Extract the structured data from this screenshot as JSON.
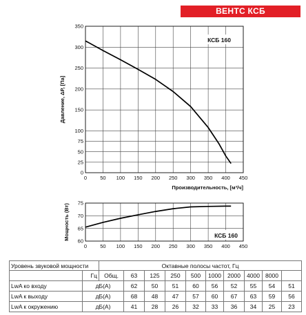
{
  "brand": "ВЕНТС КСБ",
  "chart_data": [
    {
      "type": "line",
      "model_label": "КСБ 160",
      "xlabel": "Производительность, [м³/ч]",
      "ylabel": "Давление, ΔP, [Па]",
      "xlim": [
        0,
        450
      ],
      "ylim": [
        0,
        350
      ],
      "x_ticks": [
        0,
        50,
        100,
        150,
        200,
        250,
        300,
        350,
        400,
        450
      ],
      "y_ticks": [
        0,
        25,
        50,
        75,
        100,
        150,
        200,
        250,
        300,
        350
      ],
      "grid": true,
      "series": [
        {
          "x": [
            0,
            50,
            100,
            150,
            200,
            250,
            300,
            350,
            380,
            400,
            415
          ],
          "y": [
            315,
            292,
            270,
            247,
            223,
            194,
            158,
            108,
            70,
            40,
            22
          ]
        }
      ]
    },
    {
      "type": "line",
      "model_label": "КСБ 160",
      "ylabel": "Мощность (Вт)",
      "xlim": [
        0,
        450
      ],
      "ylim": [
        60,
        75
      ],
      "x_ticks": [
        0,
        50,
        100,
        150,
        200,
        250,
        300,
        350,
        400,
        450
      ],
      "y_ticks": [
        60,
        65,
        70,
        75
      ],
      "grid": true,
      "series": [
        {
          "x": [
            0,
            50,
            100,
            150,
            200,
            250,
            300,
            350,
            400,
            415
          ],
          "y": [
            65.5,
            67.4,
            69.0,
            70.4,
            71.7,
            72.8,
            73.5,
            73.7,
            73.8,
            73.8
          ]
        }
      ]
    }
  ],
  "sound_table": {
    "header_title": "Уровень звуковой мощности",
    "header_bands": "Октавные полосы частот, Гц",
    "unit_header": "Гц",
    "columns": [
      "Общ.",
      "63",
      "125",
      "250",
      "500",
      "1000",
      "2000",
      "4000",
      "8000"
    ],
    "rows": [
      {
        "label": "LwA ко входу",
        "unit": "дБ(А)",
        "values": [
          "62",
          "50",
          "51",
          "60",
          "56",
          "52",
          "55",
          "54",
          "51"
        ]
      },
      {
        "label": "LwA к выходу",
        "unit": "дБ(А)",
        "values": [
          "68",
          "48",
          "47",
          "57",
          "60",
          "67",
          "63",
          "59",
          "56"
        ]
      },
      {
        "label": "LwA к окружению",
        "unit": "дБ(А)",
        "values": [
          "41",
          "28",
          "26",
          "32",
          "33",
          "36",
          "34",
          "25",
          "23"
        ]
      }
    ]
  }
}
